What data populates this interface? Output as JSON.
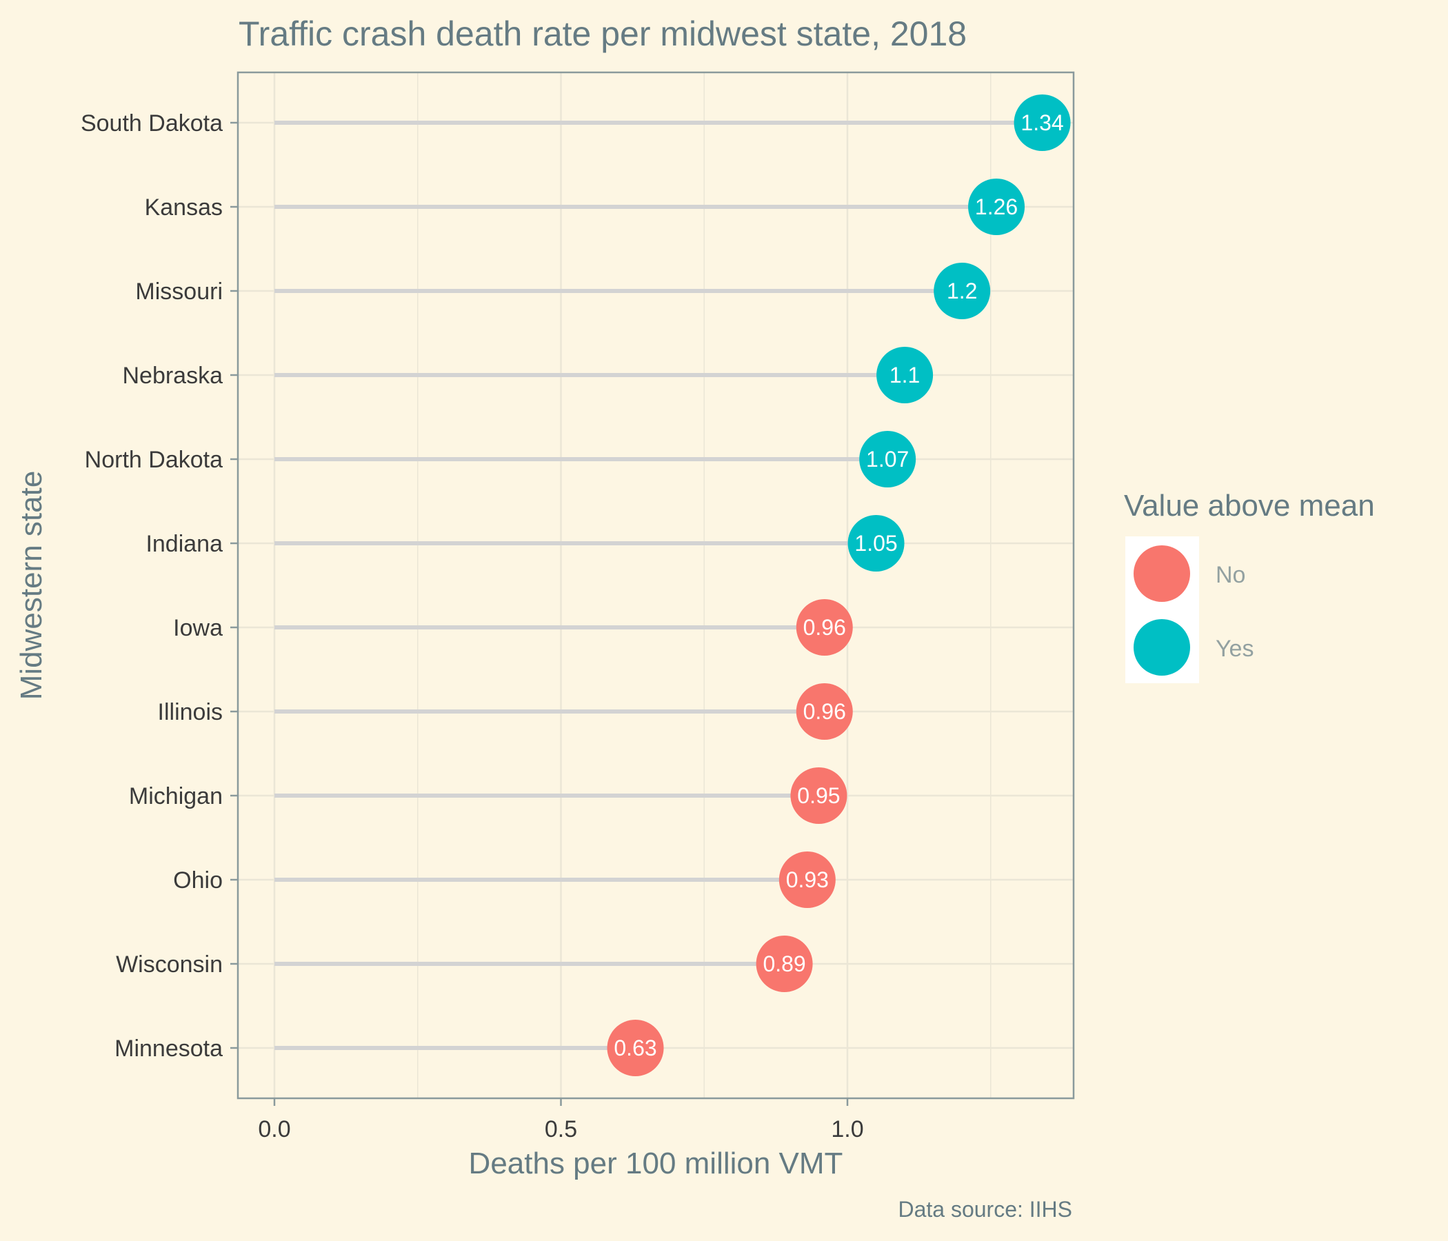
{
  "chart_data": {
    "type": "lollipop",
    "title": "Traffic crash death rate per midwest state, 2018",
    "xlabel": "Deaths per 100 million VMT",
    "ylabel": "Midwestern state",
    "caption": "Data source: IIHS",
    "xlim": [
      -0.065,
      1.4
    ],
    "x_ticks": [
      0.0,
      0.5,
      1.0
    ],
    "x_tick_labels": [
      "0.0",
      "0.5",
      "1.0"
    ],
    "grid": true,
    "legend": {
      "title": "Value above mean",
      "position": "right",
      "entries": [
        {
          "label": "No",
          "color": "#f8766d"
        },
        {
          "label": "Yes",
          "color": "#00bfc4"
        }
      ]
    },
    "categories": [
      "South Dakota",
      "Kansas",
      "Missouri",
      "Nebraska",
      "North Dakota",
      "Indiana",
      "Iowa",
      "Illinois",
      "Michigan",
      "Ohio",
      "Wisconsin",
      "Minnesota"
    ],
    "values": [
      1.34,
      1.26,
      1.2,
      1.1,
      1.07,
      1.05,
      0.96,
      0.96,
      0.95,
      0.93,
      0.89,
      0.63
    ],
    "value_labels": [
      "1.34",
      "1.26",
      "1.2",
      "1.1",
      "1.07",
      "1.05",
      "0.96",
      "0.96",
      "0.95",
      "0.93",
      "0.89",
      "0.63"
    ],
    "above_mean": [
      "Yes",
      "Yes",
      "Yes",
      "Yes",
      "Yes",
      "Yes",
      "No",
      "No",
      "No",
      "No",
      "No",
      "No"
    ],
    "colors": {
      "background": "#fdf6e3",
      "stem": "#d3d3d3",
      "grid": "#ebe6d6",
      "frame": "#8a9a9c",
      "no": "#f8766d",
      "yes": "#00bfc4"
    }
  }
}
